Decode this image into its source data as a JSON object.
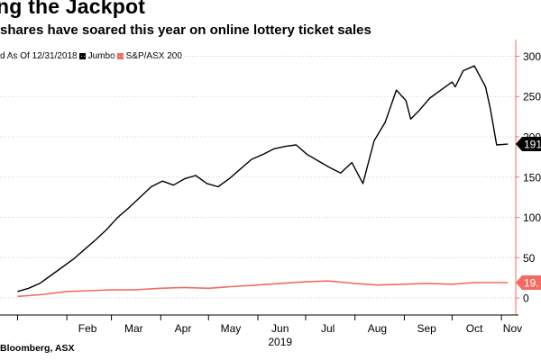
{
  "header": {
    "title": "ng the Jackpot",
    "subtitle": "shares have soared this year on online lottery ticket sales"
  },
  "legend": {
    "prefix": "d As Of 12/31/2018",
    "items": [
      {
        "label": "Jumbo",
        "color": "#000000"
      },
      {
        "label": "S&P/ASX 200",
        "color": "#f26b63"
      }
    ]
  },
  "source": "Bloomberg, ASX",
  "colors": {
    "axis": "#f26b63",
    "grid": "#cfcfcf",
    "jumbo": "#000000",
    "asx": "#f26b63"
  },
  "chart_data": {
    "type": "line",
    "title": "ng the Jackpot",
    "subtitle": "shares have soared this year on online lottery ticket sales",
    "xlabel": "",
    "ylabel": "",
    "ylim": [
      -10,
      305
    ],
    "yticks": [
      0,
      50,
      100,
      150,
      200,
      250,
      300
    ],
    "grid": "horizontal dotted",
    "legend_position": "top-left",
    "x_tick_labels": [
      "Feb",
      "Mar",
      "Apr",
      "May",
      "Jun",
      "Jul",
      "Aug",
      "Sep",
      "Oct",
      "Nov"
    ],
    "year_label": "2019",
    "last_value_labels": {
      "Jumbo": "191",
      "S&P/ASX 200": "19."
    },
    "series": [
      {
        "name": "Jumbo",
        "x": [
          "2019-01-01",
          "2019-01-08",
          "2019-01-15",
          "2019-01-22",
          "2019-01-29",
          "2019-02-05",
          "2019-02-12",
          "2019-02-19",
          "2019-02-26",
          "2019-03-05",
          "2019-03-12",
          "2019-03-19",
          "2019-03-26",
          "2019-04-02",
          "2019-04-09",
          "2019-04-16",
          "2019-04-23",
          "2019-04-30",
          "2019-05-07",
          "2019-05-14",
          "2019-05-21",
          "2019-05-28",
          "2019-06-04",
          "2019-06-11",
          "2019-06-18",
          "2019-06-25",
          "2019-07-02",
          "2019-07-09",
          "2019-07-16",
          "2019-07-23",
          "2019-07-30",
          "2019-08-06",
          "2019-08-13",
          "2019-08-16",
          "2019-08-20",
          "2019-08-27",
          "2019-09-02",
          "2019-09-05",
          "2019-09-10",
          "2019-09-17",
          "2019-09-24",
          "2019-10-01",
          "2019-10-03",
          "2019-10-08",
          "2019-10-15",
          "2019-10-22",
          "2019-10-25",
          "2019-10-29",
          "2019-11-05"
        ],
        "y": [
          8,
          12,
          18,
          28,
          38,
          48,
          60,
          72,
          85,
          100,
          112,
          125,
          138,
          145,
          140,
          148,
          152,
          142,
          138,
          148,
          160,
          172,
          178,
          185,
          188,
          190,
          178,
          170,
          162,
          155,
          168,
          142,
          195,
          205,
          218,
          258,
          245,
          222,
          232,
          248,
          258,
          268,
          262,
          282,
          288,
          262,
          235,
          190,
          191
        ]
      },
      {
        "name": "S&P/ASX 200",
        "x": [
          "2019-01-01",
          "2019-01-15",
          "2019-02-01",
          "2019-02-15",
          "2019-03-01",
          "2019-03-15",
          "2019-04-01",
          "2019-04-15",
          "2019-05-01",
          "2019-05-15",
          "2019-06-01",
          "2019-06-15",
          "2019-07-01",
          "2019-07-15",
          "2019-08-01",
          "2019-08-15",
          "2019-09-01",
          "2019-09-15",
          "2019-10-01",
          "2019-10-15",
          "2019-11-05"
        ],
        "y": [
          2,
          4,
          8,
          9,
          10,
          10,
          12,
          13,
          12,
          14,
          16,
          18,
          20,
          21,
          18,
          16,
          17,
          18,
          17,
          19,
          19
        ]
      }
    ]
  }
}
